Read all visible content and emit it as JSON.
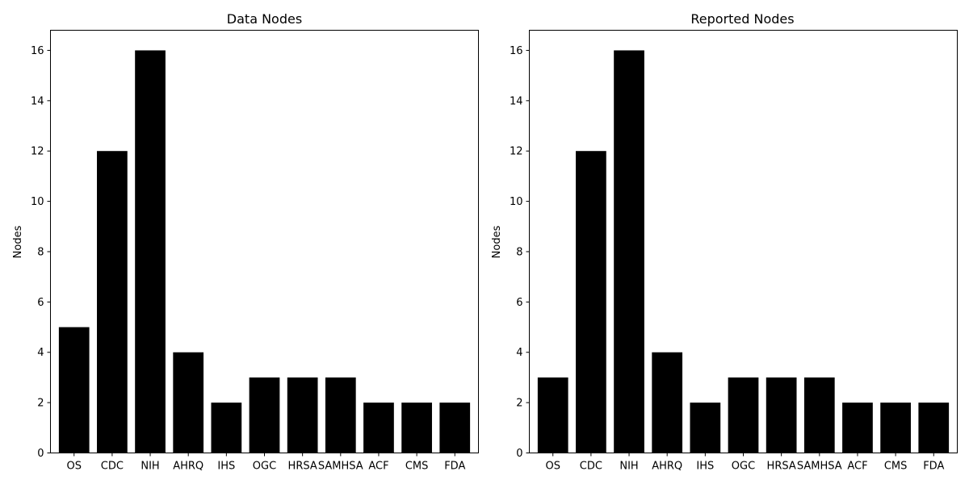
{
  "chart_data": [
    {
      "type": "bar",
      "title": "Data Nodes",
      "xlabel": "",
      "ylabel": "Nodes",
      "categories": [
        "OS",
        "CDC",
        "NIH",
        "AHRQ",
        "IHS",
        "OGC",
        "HRSA",
        "SAMHSA",
        "ACF",
        "CMS",
        "FDA"
      ],
      "values": [
        5,
        12,
        16,
        4,
        2,
        3,
        3,
        3,
        2,
        2,
        2
      ],
      "ylim": [
        0,
        16.8
      ],
      "yticks": [
        0,
        2,
        4,
        6,
        8,
        10,
        12,
        14,
        16
      ],
      "bar_color": "#000000",
      "grid": false
    },
    {
      "type": "bar",
      "title": "Reported Nodes",
      "xlabel": "",
      "ylabel": "Nodes",
      "categories": [
        "OS",
        "CDC",
        "NIH",
        "AHRQ",
        "IHS",
        "OGC",
        "HRSA",
        "SAMHSA",
        "ACF",
        "CMS",
        "FDA"
      ],
      "values": [
        3,
        12,
        16,
        4,
        2,
        3,
        3,
        3,
        2,
        2,
        2
      ],
      "ylim": [
        0,
        16.8
      ],
      "yticks": [
        0,
        2,
        4,
        6,
        8,
        10,
        12,
        14,
        16
      ],
      "bar_color": "#000000",
      "grid": false
    }
  ]
}
